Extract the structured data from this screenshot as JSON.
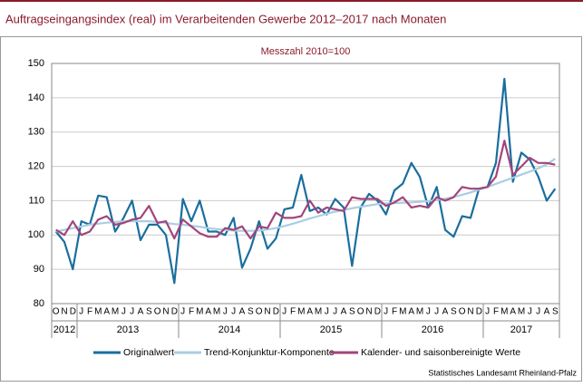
{
  "chart_data": {
    "type": "line",
    "title": "Auftragseingangsindex (real) im Verarbeitenden Gewerbe 2012–2017 nach Monaten",
    "subtitle": "Messzahl 2010=100",
    "source": "Statistisches Landesamt Rheinland-Pfalz",
    "categories": [
      "O",
      "N",
      "D",
      "J",
      "F",
      "M",
      "A",
      "M",
      "J",
      "J",
      "A",
      "S",
      "O",
      "N",
      "D",
      "J",
      "F",
      "M",
      "A",
      "M",
      "J",
      "J",
      "A",
      "S",
      "O",
      "N",
      "D",
      "J",
      "F",
      "M",
      "A",
      "M",
      "J",
      "J",
      "A",
      "S",
      "O",
      "N",
      "D",
      "J",
      "F",
      "M",
      "A",
      "M",
      "J",
      "J",
      "A",
      "S",
      "O",
      "N",
      "D",
      "J",
      "F",
      "M",
      "A",
      "M",
      "J",
      "J",
      "A",
      "S"
    ],
    "years": [
      "2012",
      "2013",
      "2014",
      "2015",
      "2016",
      "2017"
    ],
    "ylim": [
      80,
      150
    ],
    "yticks": [
      80,
      90,
      100,
      110,
      120,
      130,
      140,
      150
    ],
    "grid": true,
    "series": [
      {
        "name": "Originalwert",
        "color": "#1a6e9e",
        "values": [
          101,
          98,
          90,
          104,
          103,
          111.5,
          111,
          101,
          105,
          110,
          98.5,
          103,
          103,
          100,
          86,
          110.5,
          104,
          110,
          101,
          101,
          100,
          105,
          90.5,
          96,
          104,
          96,
          99,
          107.5,
          108,
          117.5,
          107,
          108,
          106,
          110.5,
          108,
          91,
          108,
          112,
          110,
          106,
          113,
          115,
          121,
          117,
          108,
          114,
          101.5,
          99.5,
          105.5,
          105,
          113.5,
          114,
          121,
          145.5,
          115.5,
          124,
          122,
          117,
          110,
          113.5
        ]
      },
      {
        "name": "Trend-Konjunktur-Komponente",
        "color": "#a9cde3",
        "values": [
          101,
          101.5,
          102,
          102.5,
          103,
          103.3,
          103.6,
          103.8,
          104,
          104,
          104,
          104,
          103.8,
          103.5,
          103.2,
          103,
          102.7,
          102.4,
          102,
          101.7,
          101.5,
          101.3,
          101.2,
          101.2,
          101.3,
          101.6,
          102,
          102.6,
          103.3,
          104,
          104.8,
          105.5,
          106.2,
          106.8,
          107.3,
          107.8,
          108.2,
          108.6,
          109,
          109.2,
          109.3,
          109.4,
          109.5,
          109.7,
          109.9,
          110.2,
          110.6,
          111.1,
          111.7,
          112.4,
          113.2,
          114,
          114.9,
          115.8,
          116.7,
          117.6,
          118.5,
          119.4,
          120.6,
          122.2
        ]
      },
      {
        "name": "Kalender- und saisonbereinigte Werte",
        "color": "#a3447a",
        "values": [
          101.5,
          100,
          104,
          100,
          101,
          104.5,
          105.5,
          103,
          103.5,
          104.5,
          105,
          108.5,
          103.5,
          104,
          99,
          104.5,
          102.5,
          100.5,
          99.5,
          99.5,
          102,
          101.5,
          102.5,
          99,
          102.5,
          102,
          106.5,
          105,
          105,
          105.5,
          110,
          106.5,
          108,
          107.5,
          107,
          111,
          110.5,
          110.5,
          110.5,
          108.5,
          109.5,
          111,
          108,
          108.5,
          108,
          111,
          110,
          111,
          114,
          113.5,
          113.5,
          114,
          117,
          127.5,
          117.5,
          120,
          122.5,
          121,
          121,
          120.5
        ]
      }
    ]
  }
}
